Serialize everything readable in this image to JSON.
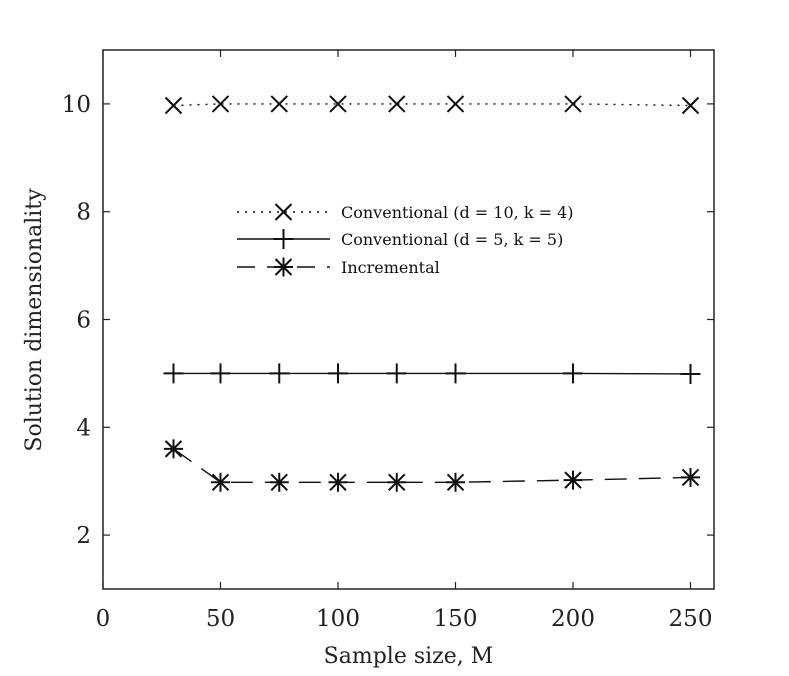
{
  "chart_data": {
    "type": "line",
    "title": "",
    "xlabel": "Sample size, M",
    "ylabel": "Solution dimensionality",
    "xlim": [
      0,
      260
    ],
    "ylim": [
      1,
      11
    ],
    "xticks": [
      0,
      50,
      100,
      150,
      200,
      250
    ],
    "yticks": [
      2,
      4,
      6,
      8,
      10
    ],
    "x": [
      30,
      50,
      75,
      100,
      125,
      150,
      200,
      250
    ],
    "grid": false,
    "legend_position": "center-left",
    "series": [
      {
        "name": "Conventional (d = 10, k = 4)",
        "marker": "x",
        "line_style": "dotted",
        "color": "#111111",
        "values": [
          9.97,
          10.0,
          10.0,
          10.0,
          10.0,
          10.0,
          10.0,
          9.97
        ]
      },
      {
        "name": "Conventional (d = 5, k = 5)",
        "marker": "+",
        "line_style": "solid",
        "color": "#111111",
        "values": [
          5.0,
          5.0,
          5.0,
          5.0,
          5.0,
          5.0,
          5.0,
          4.99
        ]
      },
      {
        "name": "Incremental",
        "marker": "asterisk",
        "line_style": "dashed",
        "color": "#111111",
        "values": [
          3.6,
          2.98,
          2.98,
          2.98,
          2.98,
          2.98,
          3.02,
          3.07
        ]
      }
    ]
  }
}
